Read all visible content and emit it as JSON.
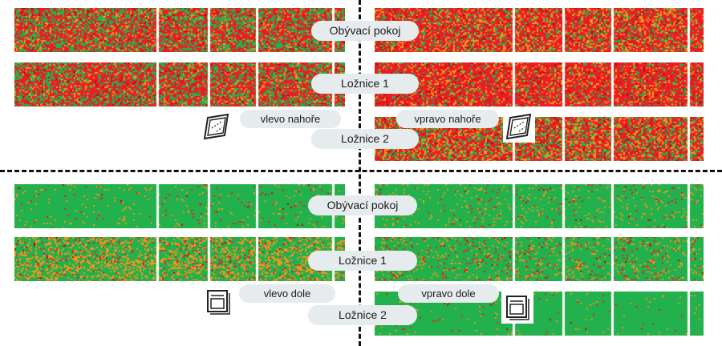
{
  "rooms": {
    "top": [
      "Obývací pokoj",
      "Ložnice 1",
      "Ložnice 2"
    ],
    "bottom": [
      "Obývací pokoj",
      "Ložnice 1",
      "Ložnice 2"
    ]
  },
  "quadrants": {
    "top_left": "vlevo nahoře",
    "top_right": "vpravo nahoře",
    "bottom_left": "vlevo dole",
    "bottom_right": "vpravo dole"
  },
  "colors": {
    "green": "#22b14c",
    "orange": "#f7941d",
    "red": "#ed1c24",
    "dark_red": "#b01212",
    "divider": "#111111",
    "pill_bg": "#e6ebee"
  },
  "icons": {
    "top": "tilted-window-icon",
    "bottom": "closed-window-icon"
  }
}
